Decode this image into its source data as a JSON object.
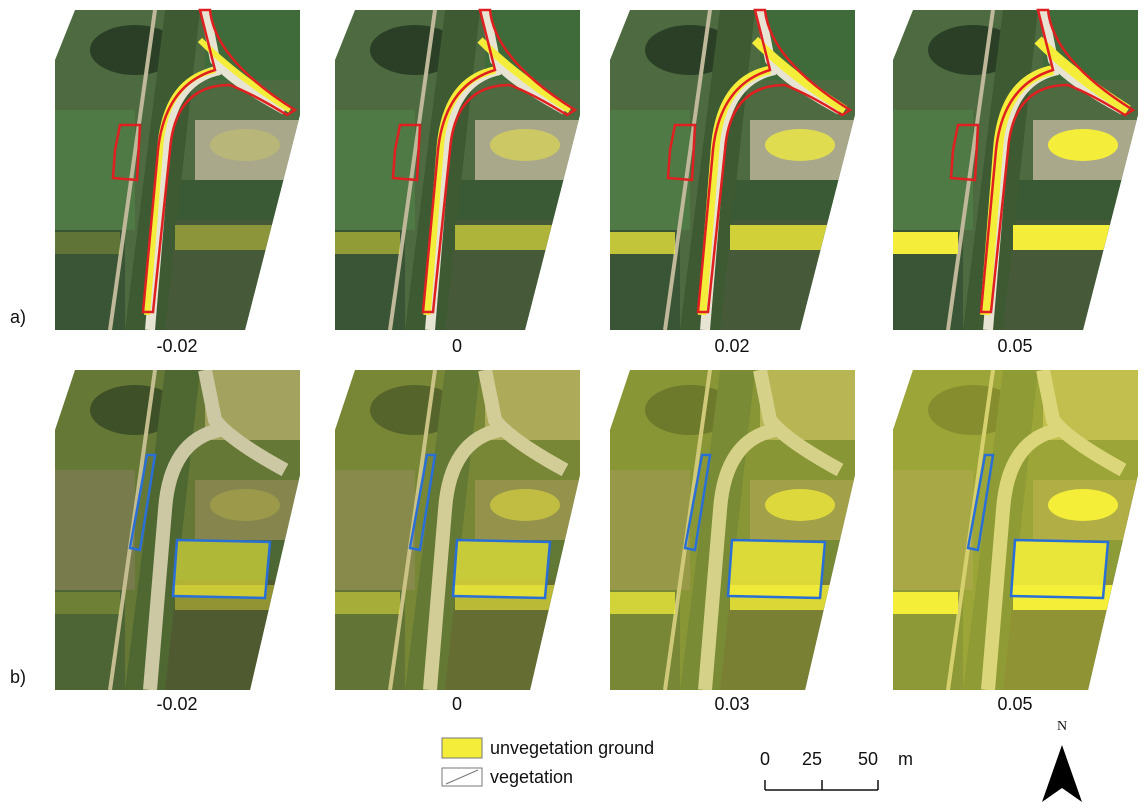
{
  "rows": [
    {
      "label": "a)",
      "panels": [
        "-0.02",
        "0",
        "0.02",
        "0.05"
      ]
    },
    {
      "label": "b)",
      "panels": [
        "-0.02",
        "0",
        "0.03",
        "0.05"
      ]
    }
  ],
  "legend": [
    {
      "label": "unvegetation ground"
    },
    {
      "label": "vegetation"
    }
  ],
  "scale_bar": {
    "ticks": [
      "0",
      "25",
      "50"
    ],
    "unit": "m"
  },
  "north": "N"
}
